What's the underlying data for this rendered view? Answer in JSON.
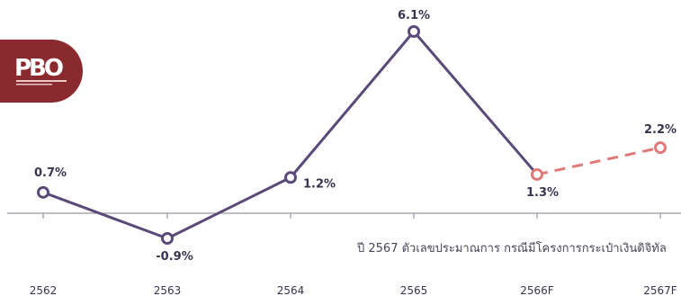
{
  "chart_data": {
    "type": "line",
    "categories": [
      "2562",
      "2563",
      "2564",
      "2565",
      "2566F",
      "2567F"
    ],
    "values": [
      0.7,
      -0.9,
      1.2,
      6.1,
      1.3,
      2.2
    ],
    "data_labels": [
      "0.7%",
      "-0.9%",
      "1.2%",
      "6.1%",
      "1.3%",
      "2.2%"
    ],
    "series_style": {
      "actual_color": "#5b4a78",
      "forecast_color": "#e07a78",
      "forecast_from_index": 4,
      "forecast_dashed": true
    },
    "annotation": "ปี 2567 ตัวเลขประมาณการ กรณีมีโครงการกระเป๋าเงินดิจิทัล",
    "title": "",
    "xlabel": "",
    "ylabel": "",
    "ylim": [
      -1.5,
      6.5
    ],
    "grid": false,
    "axis_color": "#9a94a6"
  },
  "logo": {
    "text": "PBO",
    "color": "#8b2a2e",
    "small_text": "สำนักงบประมาณของรัฐสภา"
  }
}
